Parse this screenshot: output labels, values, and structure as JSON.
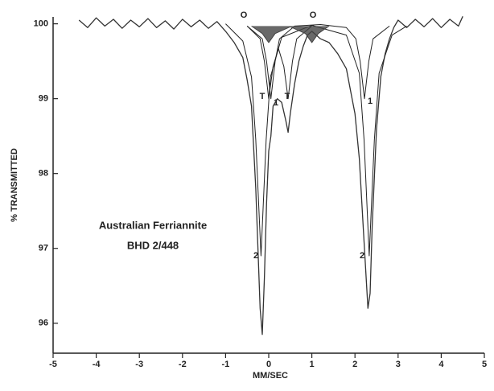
{
  "chart_data": {
    "type": "line",
    "xlabel": "MM/SEC",
    "ylabel": "% TRANSMITTED",
    "annotations": [
      "Australian Ferriannite",
      "BHD 2/448"
    ],
    "peak_labels": [
      "O",
      "O",
      "T",
      "1",
      "T",
      "1",
      "2",
      "2"
    ],
    "xlim": [
      -5,
      5
    ],
    "xticks": [
      -5,
      -4,
      -3,
      -2,
      -1,
      0,
      1,
      2,
      3,
      4,
      5
    ],
    "ylim": [
      95.6,
      100.2
    ],
    "yticks": [
      96,
      97,
      98,
      99,
      100
    ],
    "spectrum": {
      "color": "#333333",
      "x": [
        -4.4,
        -4.2,
        -4.0,
        -3.8,
        -3.6,
        -3.4,
        -3.2,
        -3.0,
        -2.8,
        -2.6,
        -2.4,
        -2.2,
        -2.0,
        -1.8,
        -1.6,
        -1.4,
        -1.2,
        -1.0,
        -0.8,
        -0.6,
        -0.5,
        -0.4,
        -0.3,
        -0.25,
        -0.2,
        -0.15,
        -0.1,
        -0.05,
        0.0,
        0.05,
        0.1,
        0.2,
        0.3,
        0.4,
        0.45,
        0.5,
        0.6,
        0.7,
        0.8,
        0.9,
        1.0,
        1.2,
        1.4,
        1.6,
        1.8,
        1.9,
        2.0,
        2.1,
        2.2,
        2.3,
        2.35,
        2.4,
        2.5,
        2.6,
        2.7,
        2.8,
        2.9,
        3.0,
        3.2,
        3.4,
        3.6,
        3.8,
        4.0,
        4.2,
        4.4,
        4.5
      ],
      "values": [
        100.05,
        99.95,
        100.08,
        99.97,
        100.06,
        99.94,
        100.05,
        99.96,
        100.07,
        99.95,
        100.04,
        99.93,
        100.06,
        99.96,
        100.05,
        99.94,
        100.03,
        99.9,
        99.75,
        99.55,
        99.25,
        98.9,
        97.8,
        97.0,
        96.2,
        95.85,
        96.6,
        97.6,
        98.3,
        98.5,
        98.9,
        99.0,
        98.95,
        98.7,
        98.55,
        98.8,
        99.2,
        99.5,
        99.7,
        99.85,
        99.9,
        99.8,
        99.75,
        99.6,
        99.4,
        99.1,
        98.8,
        98.2,
        97.2,
        96.2,
        96.4,
        97.3,
        98.6,
        99.3,
        99.6,
        99.8,
        99.95,
        100.05,
        99.95,
        100.06,
        99.96,
        100.07,
        99.95,
        100.06,
        99.97,
        100.1
      ]
    },
    "components": [
      {
        "color": "#222222",
        "shaded": false,
        "x": [
          -1.0,
          -0.6,
          -0.4,
          -0.3,
          -0.18,
          -0.06,
          0.04,
          0.3,
          1.0,
          1.8,
          2.1,
          2.21,
          2.33,
          2.45,
          2.56,
          2.86,
          3.2
        ],
        "values": [
          100,
          99.77,
          99.29,
          98.45,
          96.9,
          98.45,
          99.29,
          99.82,
          99.98,
          99.85,
          99.34,
          98.45,
          96.9,
          98.45,
          99.34,
          99.85,
          99.97
        ]
      },
      {
        "color": "#222222",
        "shaded": false,
        "x": [
          -0.5,
          -0.15,
          -0.05,
          0.05,
          0.15,
          0.25,
          0.6,
          1.2,
          1.8,
          2.02,
          2.12,
          2.22,
          2.32,
          2.42,
          2.8
        ],
        "values": [
          99.97,
          99.8,
          99.5,
          99.0,
          99.5,
          99.8,
          99.97,
          99.99,
          99.95,
          99.8,
          99.5,
          99.0,
          99.5,
          99.8,
          99.97
        ]
      },
      {
        "color": "#222222",
        "shaded": false,
        "x": [
          -0.5,
          -0.2,
          -0.1,
          0.0,
          0.1,
          0.225,
          0.35,
          0.45,
          0.55,
          0.65,
          1.0
        ],
        "values": [
          99.97,
          99.8,
          99.5,
          99.0,
          99.43,
          99.67,
          99.43,
          99.0,
          99.5,
          99.8,
          99.97
        ]
      },
      {
        "color": "#444444",
        "shaded": true,
        "x": [
          -0.4,
          -0.15,
          0.0,
          0.15,
          0.5,
          0.85,
          1.0,
          1.15,
          1.4
        ],
        "values": [
          99.97,
          99.87,
          99.75,
          99.87,
          99.96,
          99.87,
          99.75,
          99.87,
          99.97
        ]
      }
    ]
  }
}
